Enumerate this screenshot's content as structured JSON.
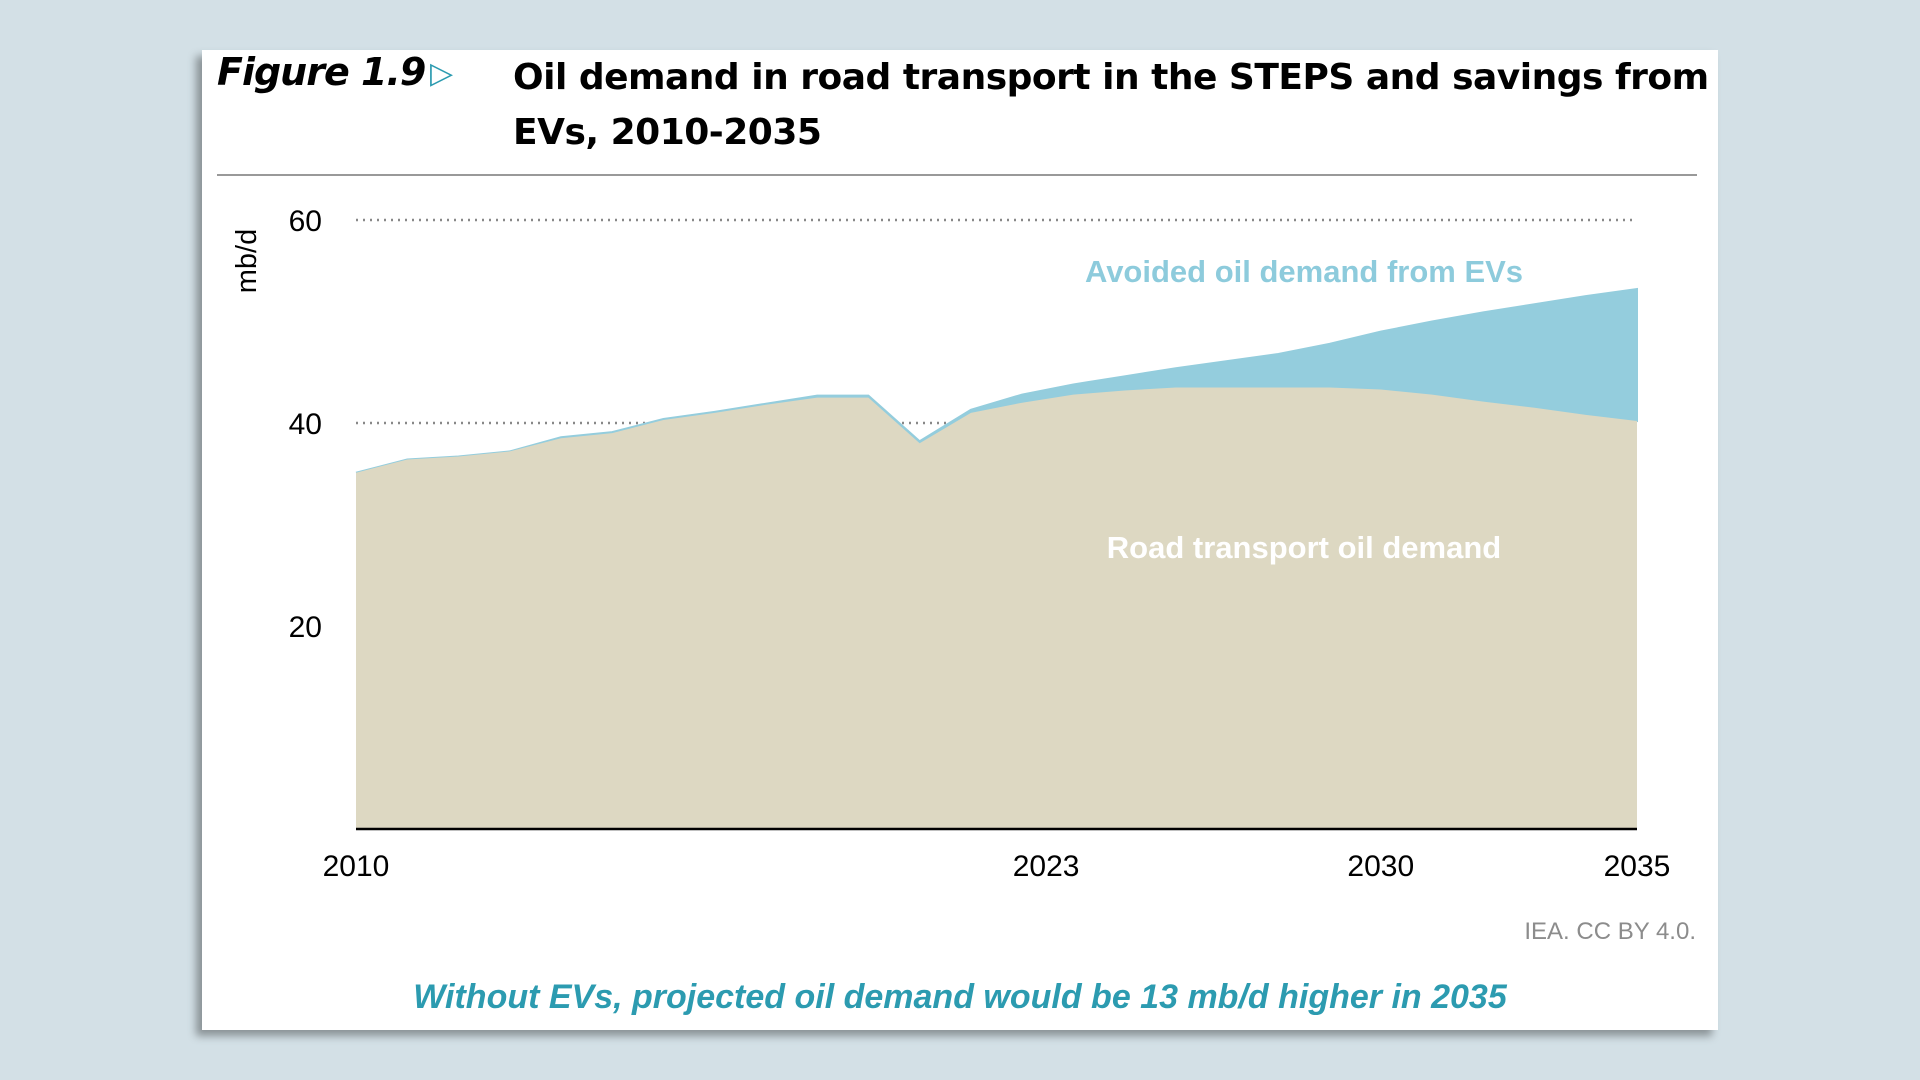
{
  "figure": {
    "label": "Figure 1.9",
    "arrow_icon": "triangle-right-icon",
    "title": "Oil demand in road transport in the STEPS and savings from EVs, 2010-2035",
    "source": "IEA. CC BY 4.0.",
    "footer": "Without EVs, projected oil demand would be 13 mb/d higher in 2035"
  },
  "chart_data": {
    "type": "area",
    "stacked": true,
    "ylabel": "mb/d",
    "xlabel": "",
    "ylim": [
      0,
      60
    ],
    "xlim": [
      2010,
      2035
    ],
    "yticks": [
      20,
      40,
      60
    ],
    "xticks": [
      2010,
      2023,
      2030,
      2035
    ],
    "grid": "horizontal dotted",
    "x": [
      2010,
      2011,
      2012,
      2013,
      2014,
      2015,
      2016,
      2017,
      2018,
      2019,
      2020,
      2021,
      2022,
      2023,
      2024,
      2025,
      2026,
      2027,
      2028,
      2029,
      2030,
      2031,
      2032,
      2033,
      2034,
      2035
    ],
    "series": [
      {
        "name": "Road transport oil demand",
        "color": "#ddd8c2",
        "values": [
          35.1,
          36.4,
          36.7,
          37.2,
          38.5,
          39.0,
          40.3,
          41.0,
          41.8,
          42.5,
          42.5,
          38.0,
          41.0,
          42.0,
          42.8,
          43.2,
          43.5,
          43.5,
          43.5,
          43.5,
          43.3,
          42.8,
          42.1,
          41.5,
          40.8,
          40.2
        ]
      },
      {
        "name": "Avoided oil demand from EVs",
        "color": "#94cddd",
        "values": [
          0,
          0,
          0,
          0,
          0.1,
          0.1,
          0.1,
          0.1,
          0.1,
          0.2,
          0.2,
          0.2,
          0.3,
          0.8,
          1.0,
          1.4,
          1.9,
          2.6,
          3.3,
          4.3,
          5.7,
          7.2,
          8.8,
          10.2,
          11.7,
          13.0
        ]
      }
    ],
    "annotations": [
      "Avoided oil demand from EVs",
      "Road transport oil demand"
    ],
    "annotation_colors": [
      "#8dcbdc",
      "#ffffff"
    ]
  }
}
